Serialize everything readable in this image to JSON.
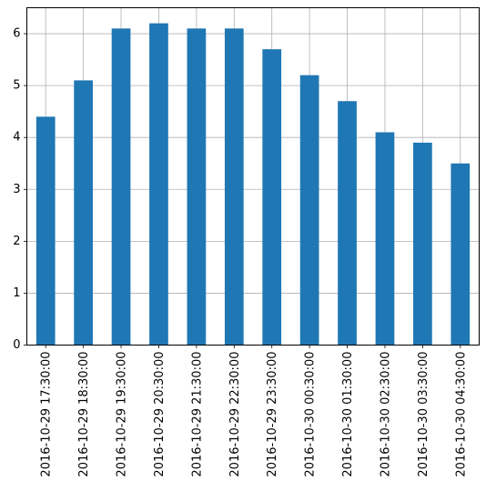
{
  "chart_data": {
    "type": "bar",
    "title": "",
    "xlabel": "",
    "ylabel": "",
    "categories": [
      "2016-10-29 17:30:00",
      "2016-10-29 18:30:00",
      "2016-10-29 19:30:00",
      "2016-10-29 20:30:00",
      "2016-10-29 21:30:00",
      "2016-10-29 22:30:00",
      "2016-10-29 23:30:00",
      "2016-10-30 00:30:00",
      "2016-10-30 01:30:00",
      "2016-10-30 02:30:00",
      "2016-10-30 03:30:00",
      "2016-10-30 04:30:00"
    ],
    "values": [
      4.4,
      5.1,
      6.1,
      6.2,
      6.1,
      6.1,
      5.7,
      5.2,
      4.7,
      4.1,
      3.9,
      3.5
    ],
    "ylim": [
      0,
      6.5
    ],
    "yticks": [
      0,
      1,
      2,
      3,
      4,
      5,
      6
    ],
    "grid": true,
    "legend": "none",
    "bar_color": "#1f77b4",
    "grid_color": "#b0b0b0"
  }
}
